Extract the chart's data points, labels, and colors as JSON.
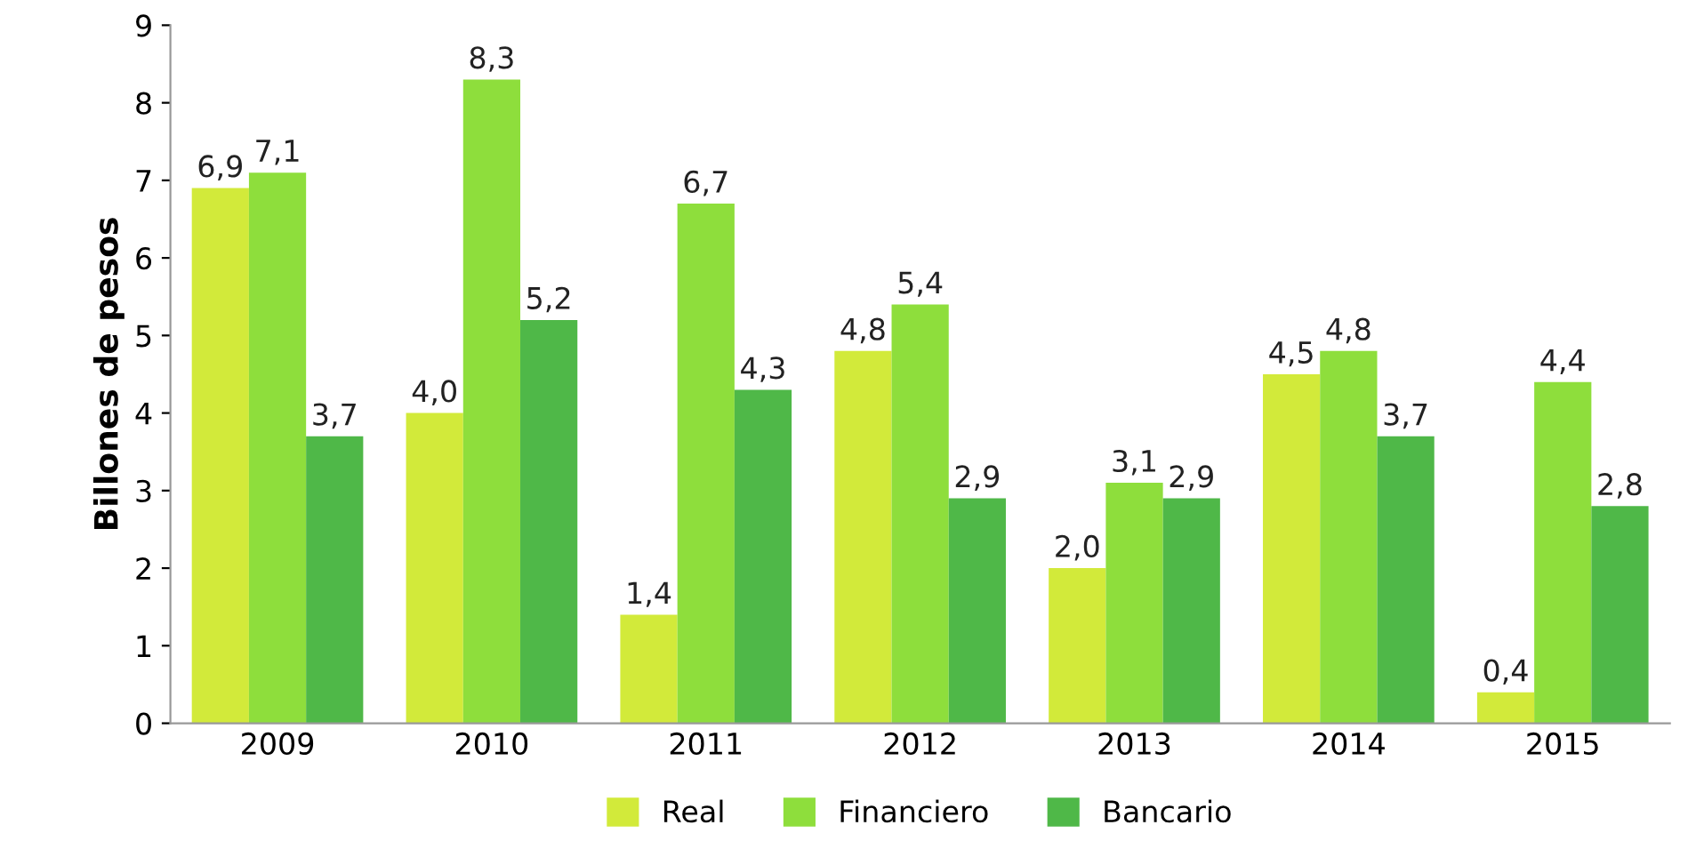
{
  "chart_data": {
    "type": "bar",
    "ylabel": "Billones de pesos",
    "categories": [
      "2009",
      "2010",
      "2011",
      "2012",
      "2013",
      "2014",
      "2015"
    ],
    "ylim": [
      0,
      9
    ],
    "yticks": [
      0,
      1,
      2,
      3,
      4,
      5,
      6,
      7,
      8,
      9
    ],
    "grid": false,
    "legend": "bottom",
    "series": [
      {
        "name": "Real",
        "color": "#d2ea3a",
        "values": [
          6.9,
          4.0,
          1.4,
          4.8,
          2.0,
          4.5,
          0.4
        ],
        "value_labels": [
          "6,9",
          "4,0",
          "1,4",
          "4,8",
          "2,0",
          "4,5",
          "0,4"
        ]
      },
      {
        "name": "Financiero",
        "color": "#8ede3c",
        "values": [
          7.1,
          8.3,
          6.7,
          5.4,
          3.1,
          4.8,
          4.4
        ],
        "value_labels": [
          "7,1",
          "8,3",
          "6,7",
          "5,4",
          "3,1",
          "4,8",
          "4,4"
        ]
      },
      {
        "name": "Bancario",
        "color": "#4fb848",
        "values": [
          3.7,
          5.2,
          4.3,
          2.9,
          2.9,
          3.7,
          2.8
        ],
        "value_labels": [
          "3,7",
          "5,2",
          "4,3",
          "2,9",
          "2,9",
          "3,7",
          "2,8"
        ]
      }
    ]
  }
}
